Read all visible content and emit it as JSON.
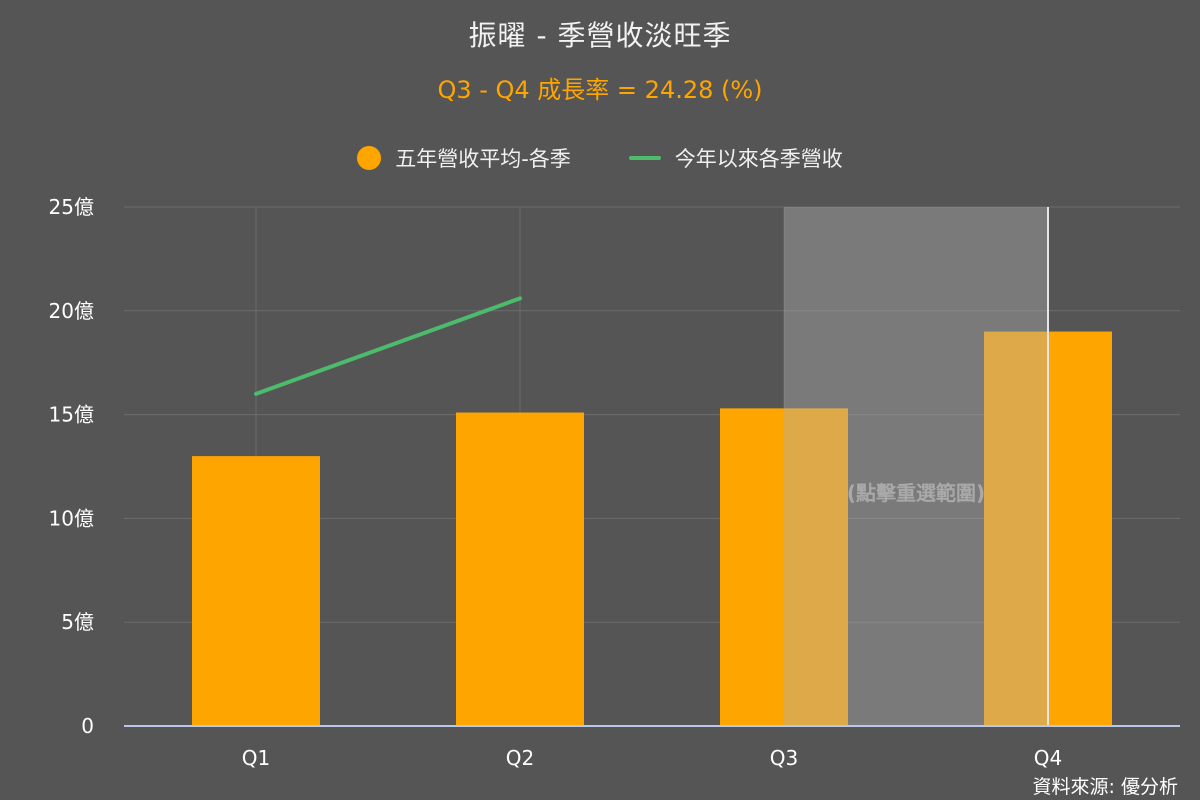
{
  "chart": {
    "title": "振曜 - 季營收淡旺季",
    "subtitle": "Q3 - Q4 成長率 = 24.28 (%)",
    "source": "資料來源: 優分析",
    "reset_label": "(點擊重選範圍)"
  },
  "legend": {
    "items": [
      {
        "label": "五年營收平均-各季",
        "color": "#ffa500",
        "shape": "circle"
      },
      {
        "label": "今年以來各季營收",
        "color": "#4cbb6c",
        "shape": "line"
      }
    ]
  },
  "chart_data": {
    "type": "bar",
    "categories": [
      "Q1",
      "Q2",
      "Q3",
      "Q4"
    ],
    "series": [
      {
        "name": "五年營收平均-各季",
        "type": "bar",
        "color": "#ffa500",
        "values": [
          13.0,
          15.1,
          15.3,
          19.0
        ]
      },
      {
        "name": "今年以來各季營收",
        "type": "line",
        "color": "#4cbb6c",
        "values": [
          16.0,
          20.6,
          null,
          null
        ]
      }
    ],
    "ylim": [
      0,
      25
    ],
    "y_ticks": [
      0,
      5,
      10,
      15,
      20,
      25
    ],
    "y_tick_labels": [
      "0",
      "5億",
      "10億",
      "15億",
      "20億",
      "25億"
    ],
    "selection": {
      "from": "Q3",
      "to": "Q4"
    },
    "grid": true,
    "legend_position": "top-center"
  }
}
